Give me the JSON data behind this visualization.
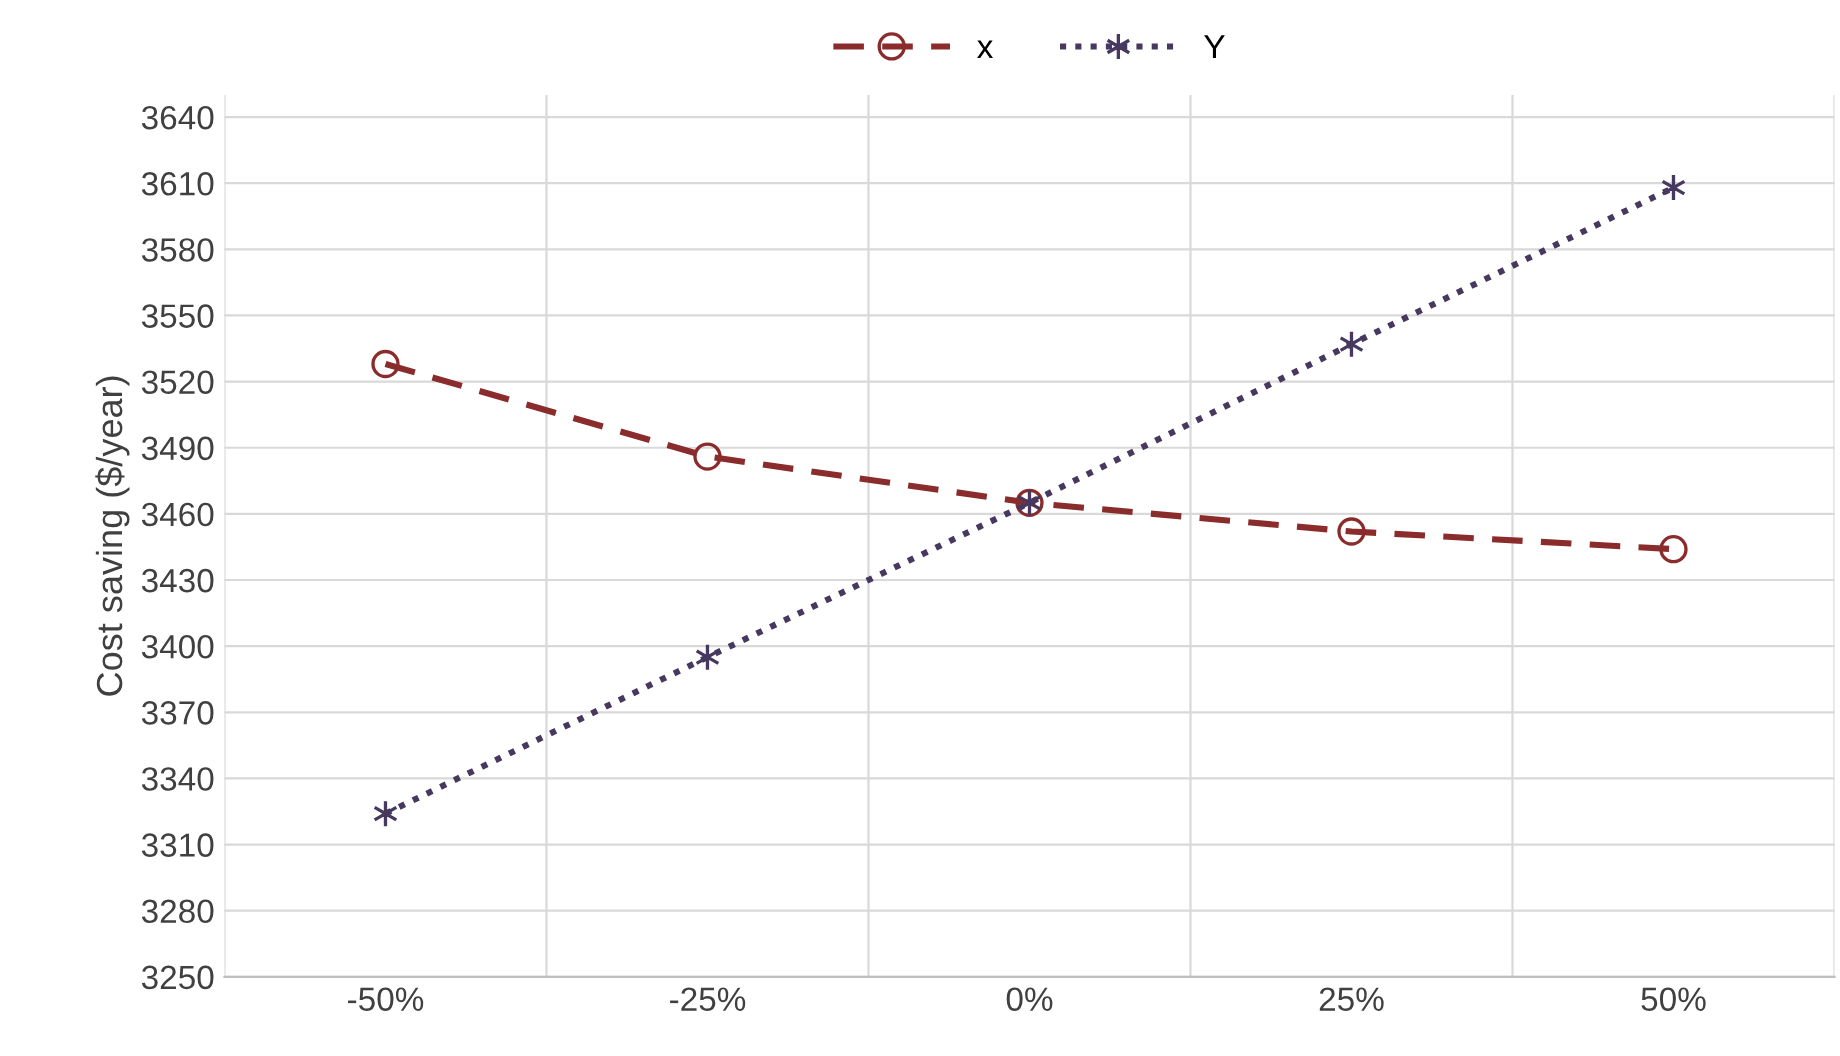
{
  "chart_data": {
    "type": "line",
    "ylabel": "Cost saving ($/year)",
    "categories": [
      "-50%",
      "-25%",
      "0%",
      "25%",
      "50%"
    ],
    "series": [
      {
        "name": "x",
        "color": "#8b2c2c",
        "values": [
          3528,
          3486,
          3465,
          3452,
          3444
        ],
        "marker": "circle",
        "line_style": "dashed"
      },
      {
        "name": "Y",
        "color": "#46385e",
        "values": [
          3324,
          3395,
          3465,
          3537,
          3608
        ],
        "marker": "cross",
        "line_style": "dotted"
      }
    ],
    "ylim": [
      3250,
      3650
    ],
    "yticks": [
      3250,
      3280,
      3310,
      3340,
      3370,
      3400,
      3430,
      3460,
      3490,
      3520,
      3550,
      3580,
      3610,
      3640
    ],
    "grid": true,
    "legend": "top"
  }
}
